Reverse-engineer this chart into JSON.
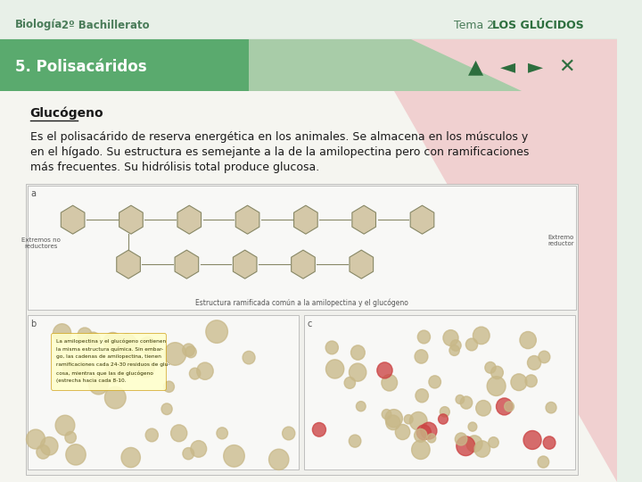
{
  "bg_color": "#e8f0e8",
  "header_text_left1": "Biología",
  "header_text_left2": "2º Bachillerato",
  "header_text_right1": "Tema 2. ",
  "header_text_right2": "LOS GLÚCIDOS",
  "header_text_color": "#4a7c59",
  "header_text_bold_color": "#2d6e3e",
  "banner_bg": "#5aaa6e",
  "banner_light": "#a8cca8",
  "banner_text": "5. Polisacáridos",
  "banner_text_color": "#ffffff",
  "content_bg": "#f5f5f0",
  "title_underline_text": "Glucógeno",
  "title_color": "#1a1a1a",
  "body_lines": [
    "Es el polisacárido de reserva energética en los animales. Se almacena en los músculos y",
    "en el hígado. Su estructura es semejante a la de la amilopectina pero con ramificaciones",
    "más frecuentes. Su hidrólisis total produce glucosa."
  ],
  "body_text_color": "#1a1a1a",
  "diagonal_color": "#f0d0d0",
  "nav_icons_color": "#2d6e3e",
  "image_bg": "#f0f0ec",
  "hex_color": "#d4c8a8",
  "hex_edge": "#888866",
  "blob_color": "#c8b888",
  "blob_red": "#cc4444",
  "ann_bg": "#ffffcc",
  "ann_edge": "#cc9900",
  "ann_text_color": "#333300",
  "ann_lines": [
    "La amilopectina y el glucógeno contienen",
    "la misma estructura química. Sin embar-",
    "go, las cadenas de amilopectina, tienen",
    "ramificaciones cada 24-30 residuos de glu-",
    "cosa, mientras que las de glucógeno",
    "(estrecha hacia cada 8-10."
  ]
}
